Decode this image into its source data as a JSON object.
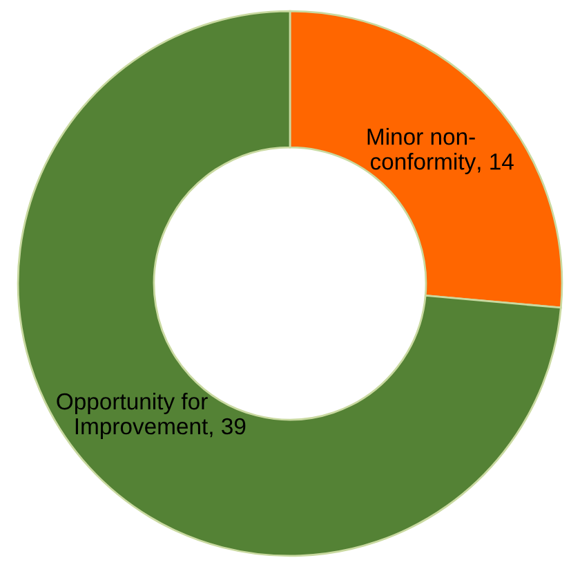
{
  "chart_data": {
    "type": "donut",
    "categories": [
      "Minor non-\nconformity",
      "Opportunity for\nImprovement"
    ],
    "values": [
      14,
      39
    ],
    "colors": [
      "#ff6600",
      "#548235"
    ],
    "value_labels": [
      ", 14",
      ", 39"
    ],
    "legend": false
  }
}
